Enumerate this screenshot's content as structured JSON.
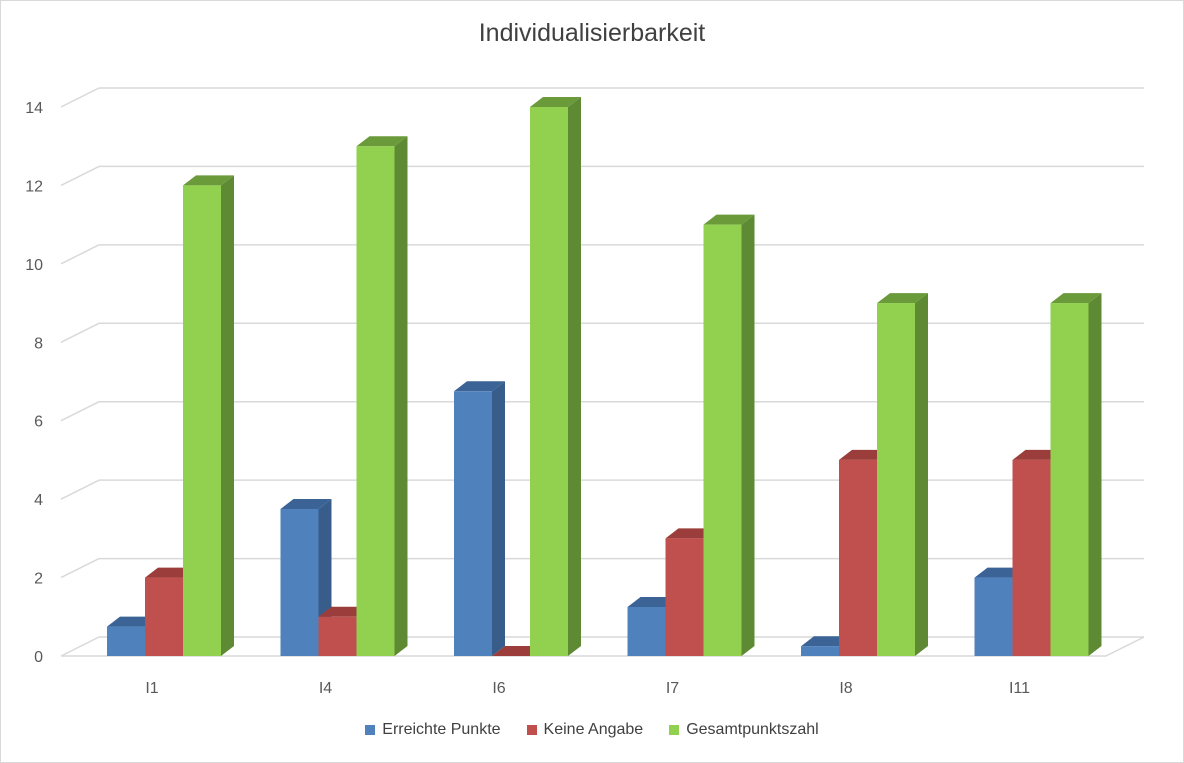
{
  "chart_data": {
    "type": "bar",
    "title": "Individualisierbarkeit",
    "categories": [
      "I1",
      "I4",
      "I6",
      "I7",
      "I8",
      "I11"
    ],
    "ylim": [
      0,
      14
    ],
    "yticks": [
      "0",
      "2",
      "4",
      "6",
      "8",
      "10",
      "12",
      "14"
    ],
    "grid": true,
    "legend_position": "bottom",
    "series": [
      {
        "name": "Erreichte Punkte",
        "color": "#4f81bd",
        "side_color": "#385d8a",
        "top_color": "#3b6396",
        "values": [
          0.75,
          3.75,
          6.75,
          1.25,
          0.25,
          2
        ]
      },
      {
        "name": "Keine Angabe",
        "color": "#c0504d",
        "side_color": "#8c3836",
        "top_color": "#9b3d3a",
        "values": [
          2,
          1,
          0,
          3,
          5,
          5
        ]
      },
      {
        "name": "Gesamtpunktszahl",
        "color": "#92d050",
        "side_color": "#5e8a33",
        "top_color": "#6a9a3a",
        "values": [
          12,
          13,
          14,
          11,
          9,
          9
        ]
      }
    ]
  }
}
